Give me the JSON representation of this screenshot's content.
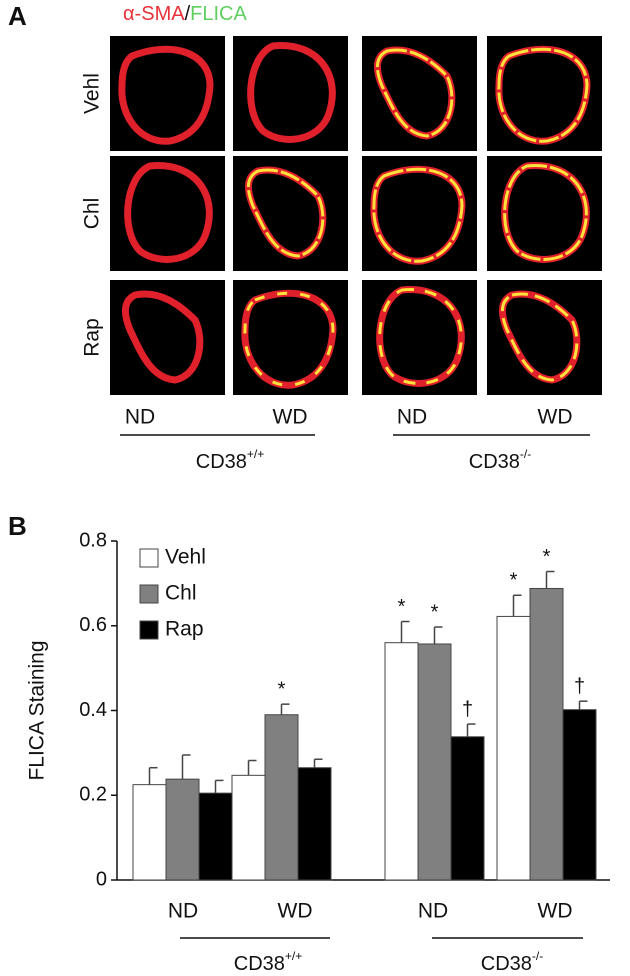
{
  "panel_a": {
    "label": "A",
    "stain_red": "α-SMA",
    "separator": "/",
    "stain_green": "FLICA",
    "rows": [
      "Vehl",
      "Chl",
      "Rap"
    ],
    "columns": [
      "ND",
      "WD",
      "ND",
      "WD"
    ],
    "groups": [
      {
        "base": "CD38",
        "sup": "+/+"
      },
      {
        "base": "CD38",
        "sup": "-/-"
      }
    ]
  },
  "chart_data": {
    "type": "bar",
    "panel_label": "B",
    "y_label": "FLICA Staining",
    "categories": [
      "ND",
      "WD",
      "ND",
      "WD"
    ],
    "groups": [
      {
        "base": "CD38",
        "sup": "+/+"
      },
      {
        "base": "CD38",
        "sup": "-/-"
      }
    ],
    "ylim": [
      0,
      0.8
    ],
    "yticks": [
      0,
      0.2,
      0.4,
      0.6,
      0.8
    ],
    "legend": "top-left",
    "series": [
      {
        "name": "Vehl",
        "color": "#ffffff",
        "values": [
          0.225,
          0.247,
          0.56,
          0.622
        ],
        "errors": [
          0.04,
          0.035,
          0.05,
          0.05
        ],
        "markers": [
          null,
          null,
          "*",
          "*"
        ]
      },
      {
        "name": "Chl",
        "color": "#808080",
        "values": [
          0.238,
          0.39,
          0.557,
          0.688
        ],
        "errors": [
          0.057,
          0.025,
          0.04,
          0.04
        ],
        "markers": [
          null,
          "*",
          "*",
          "*"
        ]
      },
      {
        "name": "Rap",
        "color": "#000000",
        "values": [
          0.205,
          0.265,
          0.338,
          0.402
        ],
        "errors": [
          0.03,
          0.02,
          0.03,
          0.02
        ],
        "markers": [
          null,
          null,
          "†",
          "†"
        ]
      }
    ]
  }
}
